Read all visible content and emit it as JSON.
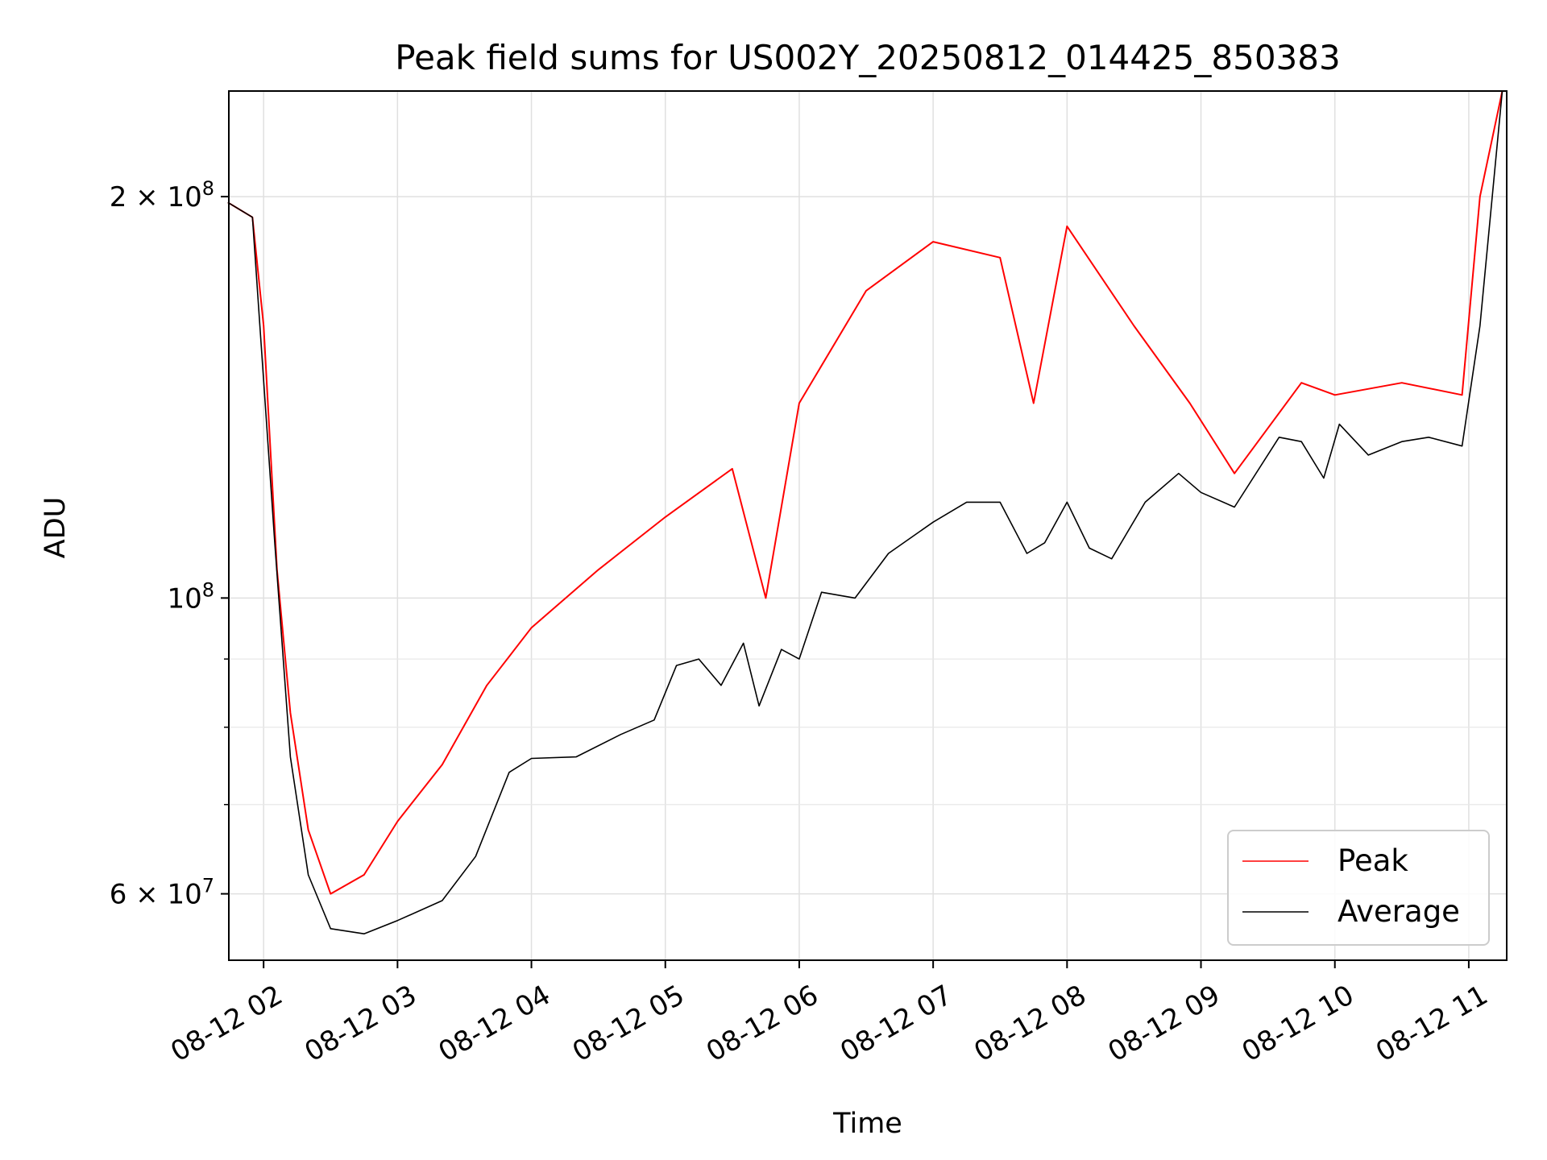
{
  "chart_data": {
    "type": "line",
    "title": "Peak field sums for US002Y_20250812_014425_850383",
    "xlabel": "Time",
    "ylabel": "ADU",
    "x_scale": "time",
    "y_scale": "log",
    "xlim": [
      "2025-08-12T01:44:25",
      "2025-08-12T11:17:00"
    ],
    "ylim": [
      53500000,
      240000000
    ],
    "grid": true,
    "legend_position": "lower-right",
    "x_ticks": [
      {
        "value": "2025-08-12T02:00",
        "label": "08-12 02"
      },
      {
        "value": "2025-08-12T03:00",
        "label": "08-12 03"
      },
      {
        "value": "2025-08-12T04:00",
        "label": "08-12 04"
      },
      {
        "value": "2025-08-12T05:00",
        "label": "08-12 05"
      },
      {
        "value": "2025-08-12T06:00",
        "label": "08-12 06"
      },
      {
        "value": "2025-08-12T07:00",
        "label": "08-12 07"
      },
      {
        "value": "2025-08-12T08:00",
        "label": "08-12 08"
      },
      {
        "value": "2025-08-12T09:00",
        "label": "08-12 09"
      },
      {
        "value": "2025-08-12T10:00",
        "label": "08-12 10"
      },
      {
        "value": "2025-08-12T11:00",
        "label": "08-12 11"
      }
    ],
    "y_major_ticks": [
      {
        "value": 60000000,
        "mantissa": "6",
        "exponent": "7",
        "text": "6 × 10^7"
      },
      {
        "value": 100000000,
        "mantissa": "",
        "exponent": "8",
        "text": "10^8"
      },
      {
        "value": 200000000,
        "mantissa": "2",
        "exponent": "8",
        "text": "2 × 10^8"
      }
    ],
    "y_minor_ticks": [
      70000000,
      80000000,
      90000000
    ],
    "series": [
      {
        "name": "Peak",
        "color": "#ff0000",
        "values": [
          [
            "2025-08-12T01:44",
            198000000
          ],
          [
            "2025-08-12T01:55",
            193000000
          ],
          [
            "2025-08-12T02:00",
            160000000
          ],
          [
            "2025-08-12T02:06",
            105000000
          ],
          [
            "2025-08-12T02:12",
            82000000
          ],
          [
            "2025-08-12T02:20",
            67000000
          ],
          [
            "2025-08-12T02:30",
            60000000
          ],
          [
            "2025-08-12T02:45",
            62000000
          ],
          [
            "2025-08-12T03:00",
            68000000
          ],
          [
            "2025-08-12T03:20",
            75000000
          ],
          [
            "2025-08-12T03:40",
            86000000
          ],
          [
            "2025-08-12T04:00",
            95000000
          ],
          [
            "2025-08-12T04:30",
            105000000
          ],
          [
            "2025-08-12T05:00",
            115000000
          ],
          [
            "2025-08-12T05:30",
            125000000
          ],
          [
            "2025-08-12T05:45",
            100000000
          ],
          [
            "2025-08-12T06:00",
            140000000
          ],
          [
            "2025-08-12T06:30",
            170000000
          ],
          [
            "2025-08-12T07:00",
            185000000
          ],
          [
            "2025-08-12T07:30",
            180000000
          ],
          [
            "2025-08-12T07:45",
            140000000
          ],
          [
            "2025-08-12T08:00",
            190000000
          ],
          [
            "2025-08-12T08:30",
            160000000
          ],
          [
            "2025-08-12T08:55",
            140000000
          ],
          [
            "2025-08-12T09:15",
            124000000
          ],
          [
            "2025-08-12T09:45",
            145000000
          ],
          [
            "2025-08-12T10:00",
            142000000
          ],
          [
            "2025-08-12T10:30",
            145000000
          ],
          [
            "2025-08-12T10:57",
            142000000
          ],
          [
            "2025-08-12T11:05",
            200000000
          ],
          [
            "2025-08-12T11:15",
            240000000
          ]
        ]
      },
      {
        "name": "Average",
        "color": "#000000",
        "values": [
          [
            "2025-08-12T01:44",
            198000000
          ],
          [
            "2025-08-12T01:55",
            193000000
          ],
          [
            "2025-08-12T02:05",
            110000000
          ],
          [
            "2025-08-12T02:12",
            76000000
          ],
          [
            "2025-08-12T02:20",
            62000000
          ],
          [
            "2025-08-12T02:30",
            56500000
          ],
          [
            "2025-08-12T02:45",
            56000000
          ],
          [
            "2025-08-12T03:00",
            57300000
          ],
          [
            "2025-08-12T03:20",
            59300000
          ],
          [
            "2025-08-12T03:35",
            64000000
          ],
          [
            "2025-08-12T03:50",
            74000000
          ],
          [
            "2025-08-12T04:00",
            75800000
          ],
          [
            "2025-08-12T04:20",
            76000000
          ],
          [
            "2025-08-12T04:40",
            79000000
          ],
          [
            "2025-08-12T04:55",
            81000000
          ],
          [
            "2025-08-12T05:05",
            89000000
          ],
          [
            "2025-08-12T05:15",
            90000000
          ],
          [
            "2025-08-12T05:25",
            86000000
          ],
          [
            "2025-08-12T05:35",
            92500000
          ],
          [
            "2025-08-12T05:42",
            83000000
          ],
          [
            "2025-08-12T05:52",
            91500000
          ],
          [
            "2025-08-12T06:00",
            90000000
          ],
          [
            "2025-08-12T06:10",
            101000000
          ],
          [
            "2025-08-12T06:25",
            100000000
          ],
          [
            "2025-08-12T06:40",
            108000000
          ],
          [
            "2025-08-12T07:00",
            114000000
          ],
          [
            "2025-08-12T07:15",
            118000000
          ],
          [
            "2025-08-12T07:30",
            118000000
          ],
          [
            "2025-08-12T07:42",
            108000000
          ],
          [
            "2025-08-12T07:50",
            110000000
          ],
          [
            "2025-08-12T08:00",
            118000000
          ],
          [
            "2025-08-12T08:10",
            109000000
          ],
          [
            "2025-08-12T08:20",
            107000000
          ],
          [
            "2025-08-12T08:35",
            118000000
          ],
          [
            "2025-08-12T08:50",
            124000000
          ],
          [
            "2025-08-12T09:00",
            120000000
          ],
          [
            "2025-08-12T09:15",
            117000000
          ],
          [
            "2025-08-12T09:35",
            132000000
          ],
          [
            "2025-08-12T09:45",
            131000000
          ],
          [
            "2025-08-12T09:55",
            123000000
          ],
          [
            "2025-08-12T10:02",
            135000000
          ],
          [
            "2025-08-12T10:15",
            128000000
          ],
          [
            "2025-08-12T10:30",
            131000000
          ],
          [
            "2025-08-12T10:42",
            132000000
          ],
          [
            "2025-08-12T10:57",
            130000000
          ],
          [
            "2025-08-12T11:05",
            160000000
          ],
          [
            "2025-08-12T11:15",
            240000000
          ]
        ]
      }
    ]
  }
}
